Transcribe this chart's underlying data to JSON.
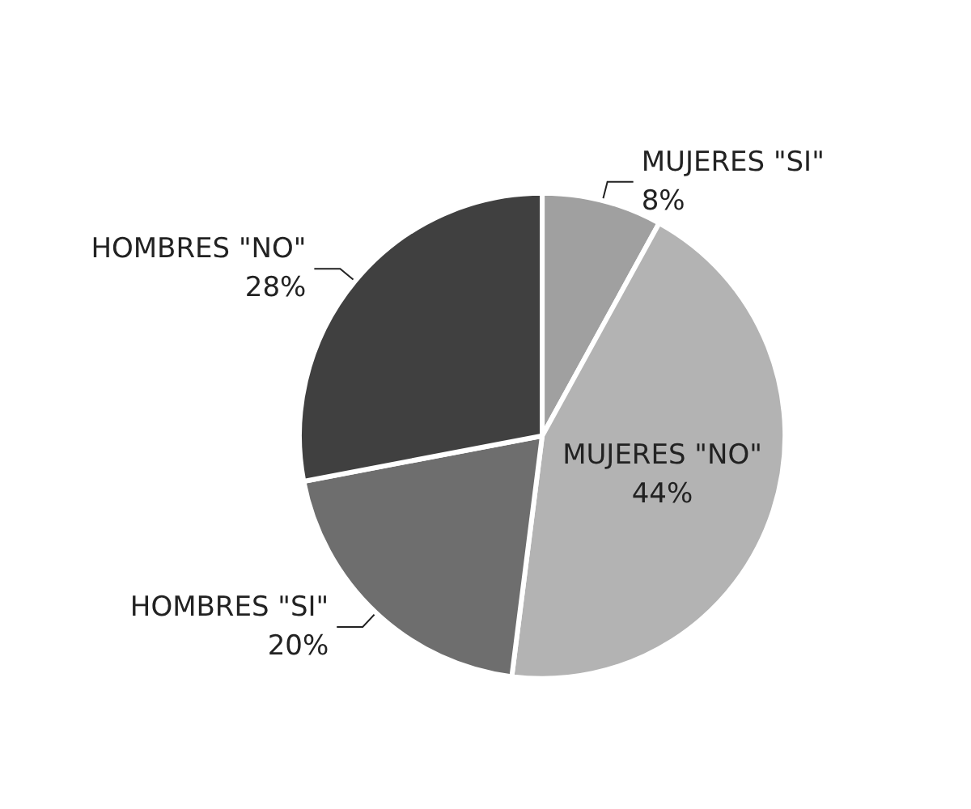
{
  "chart_data": {
    "type": "pie",
    "categories": [
      "MUJERES \"SI\"",
      "MUJERES \"NO\"",
      "HOMBRES \"SI\"",
      "HOMBRES \"NO\""
    ],
    "values": [
      8,
      44,
      20,
      28
    ],
    "value_labels": [
      "8%",
      "44%",
      "20%",
      "28%"
    ],
    "colors": [
      "#a0a0a0",
      "#b3b3b3",
      "#6e6e6e",
      "#404040"
    ],
    "legend": false
  }
}
